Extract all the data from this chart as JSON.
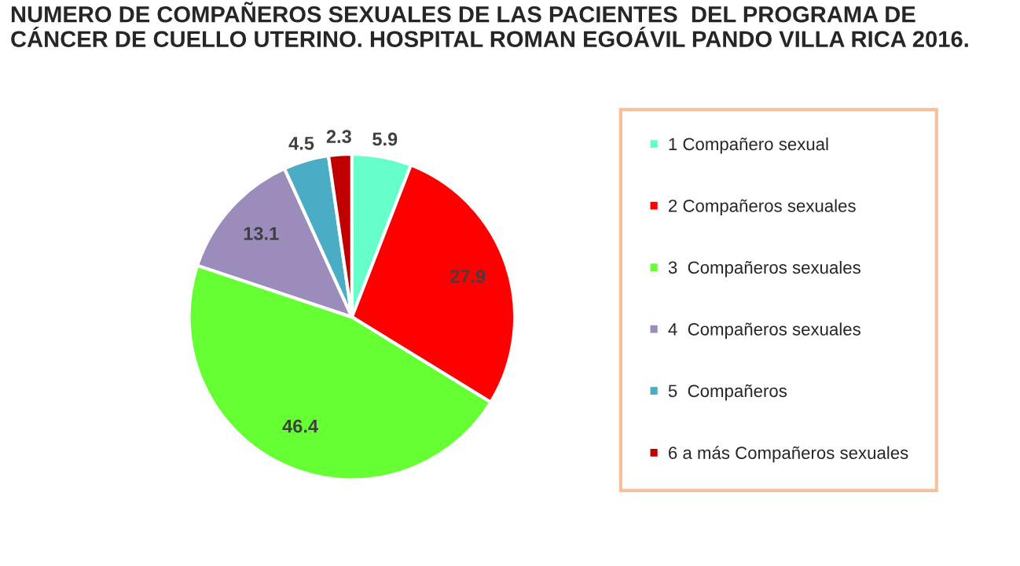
{
  "chart_data": {
    "type": "pie",
    "title": "NUMERO DE COMPAÑEROS SEXUALES DE LAS PACIENTES  DEL PROGRAMA DE CÁNCER DE CUELLO UTERINO. HOSPITAL ROMAN EGOÁVIL PANDO VILLA RICA 2016.",
    "categories": [
      "1 Compañero sexual",
      "2 Compañeros sexuales",
      "3  Compañeros sexuales",
      "4  Compañeros sexuales",
      "5  Compañeros",
      "6 a más Compañeros sexuales"
    ],
    "values": [
      5.9,
      27.9,
      46.4,
      13.1,
      4.5,
      2.3
    ],
    "colors": [
      "#66ffcc",
      "#ff0000",
      "#66ff33",
      "#9c8cbc",
      "#4bacc6",
      "#c00000"
    ],
    "data_labels": true,
    "legend": "right"
  }
}
